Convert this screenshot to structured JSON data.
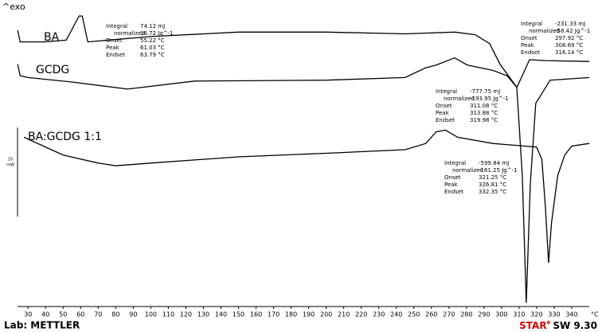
{
  "chart_data": {
    "type": "line",
    "y_label": "^exo",
    "x_label": "°C",
    "xlim": [
      24,
      350
    ],
    "xticks": [
      30,
      40,
      50,
      60,
      70,
      80,
      90,
      100,
      110,
      120,
      130,
      140,
      150,
      160,
      170,
      180,
      190,
      200,
      210,
      220,
      230,
      240,
      250,
      260,
      270,
      280,
      290,
      300,
      310,
      320,
      330,
      340
    ],
    "ylim": [
      0,
      34.4
    ],
    "scale_bar": {
      "value": 10,
      "unit": "mW"
    },
    "series": [
      {
        "name": "BA",
        "color": "#000000",
        "x": [
          24.1,
          25.5,
          40,
          51.8,
          59.1,
          60.9,
          64.1,
          100,
          150,
          200,
          245,
          273.2,
          285,
          293.2,
          299.1,
          308.7,
          311.8,
          315.9,
          325,
          350
        ],
        "values": [
          31.0,
          29.7,
          29.7,
          29.9,
          32.6,
          32.6,
          29.7,
          30.3,
          30.8,
          30.8,
          30.6,
          30.8,
          30.5,
          29.5,
          27.2,
          24.6,
          25.9,
          27.7,
          27.6,
          27.5
        ]
      },
      {
        "name": "GCDG",
        "color": "#000000",
        "x": [
          24.1,
          25.5,
          30,
          55,
          86.8,
          125,
          200,
          245,
          256.8,
          262.7,
          273.2,
          280.5,
          295,
          303.2,
          308.7,
          311.8,
          314.1,
          316.4,
          319.5,
          327.7,
          350
        ],
        "values": [
          27.2,
          25.9,
          25.7,
          25.2,
          24.4,
          25.3,
          25.4,
          25.7,
          26.8,
          27.1,
          27.9,
          27.1,
          26.5,
          25.9,
          24.6,
          14.7,
          0.4,
          13.8,
          22.8,
          25.4,
          25.7
        ]
      },
      {
        "name": "BA:GCDG 1:1",
        "color": "#000000",
        "x": [
          27.7,
          50,
          70,
          80,
          100,
          150,
          200,
          245,
          256.8,
          262.7,
          268,
          275,
          295,
          320,
          323,
          325,
          326.8,
          328.5,
          332,
          336,
          340,
          350
        ],
        "values": [
          19.0,
          17.0,
          16.1,
          15.8,
          16.1,
          16.8,
          17.2,
          17.6,
          18.3,
          19.6,
          19.8,
          19.0,
          18.3,
          17.9,
          16.5,
          11.2,
          4.9,
          9.4,
          14.7,
          17.0,
          18.0,
          18.3
        ]
      }
    ],
    "annotations": [
      {
        "rows": [
          [
            "Integral",
            "74.12 mJ"
          ],
          [
            "normalized",
            "18.72 Jg^-1"
          ],
          [
            "Onset",
            "55.22 °C"
          ],
          [
            "Peak",
            "61.03 °C"
          ],
          [
            "Endset",
            "63.79 °C"
          ]
        ]
      },
      {
        "rows": [
          [
            "Integral",
            "-231.33 mJ"
          ],
          [
            "normalized",
            "-58.42 Jg^-1"
          ],
          [
            "Onset",
            "297.92 °C"
          ],
          [
            "Peak",
            "308.69 °C"
          ],
          [
            "Endset",
            "316.14 °C"
          ]
        ]
      },
      {
        "rows": [
          [
            "Integral",
            "-777.75 mJ"
          ],
          [
            "normalized",
            "-193.95 Jg^-1"
          ],
          [
            "Onset",
            "311.08 °C"
          ],
          [
            "Peak",
            "313.88 °C"
          ],
          [
            "Endset",
            "319.98 °C"
          ]
        ]
      },
      {
        "rows": [
          [
            "Integral",
            "-599.84 mJ"
          ],
          [
            "normalized",
            "-161.25 Jg^-1"
          ],
          [
            "Onset",
            "321.25 °C"
          ],
          [
            "Peak",
            "326.81 °C"
          ],
          [
            "Endset",
            "332.35 °C"
          ]
        ]
      }
    ]
  },
  "footer": {
    "lab": "Lab: METTLER",
    "software_brand": "STAR",
    "software_mark": "e",
    "software_version": "SW 9.30"
  }
}
